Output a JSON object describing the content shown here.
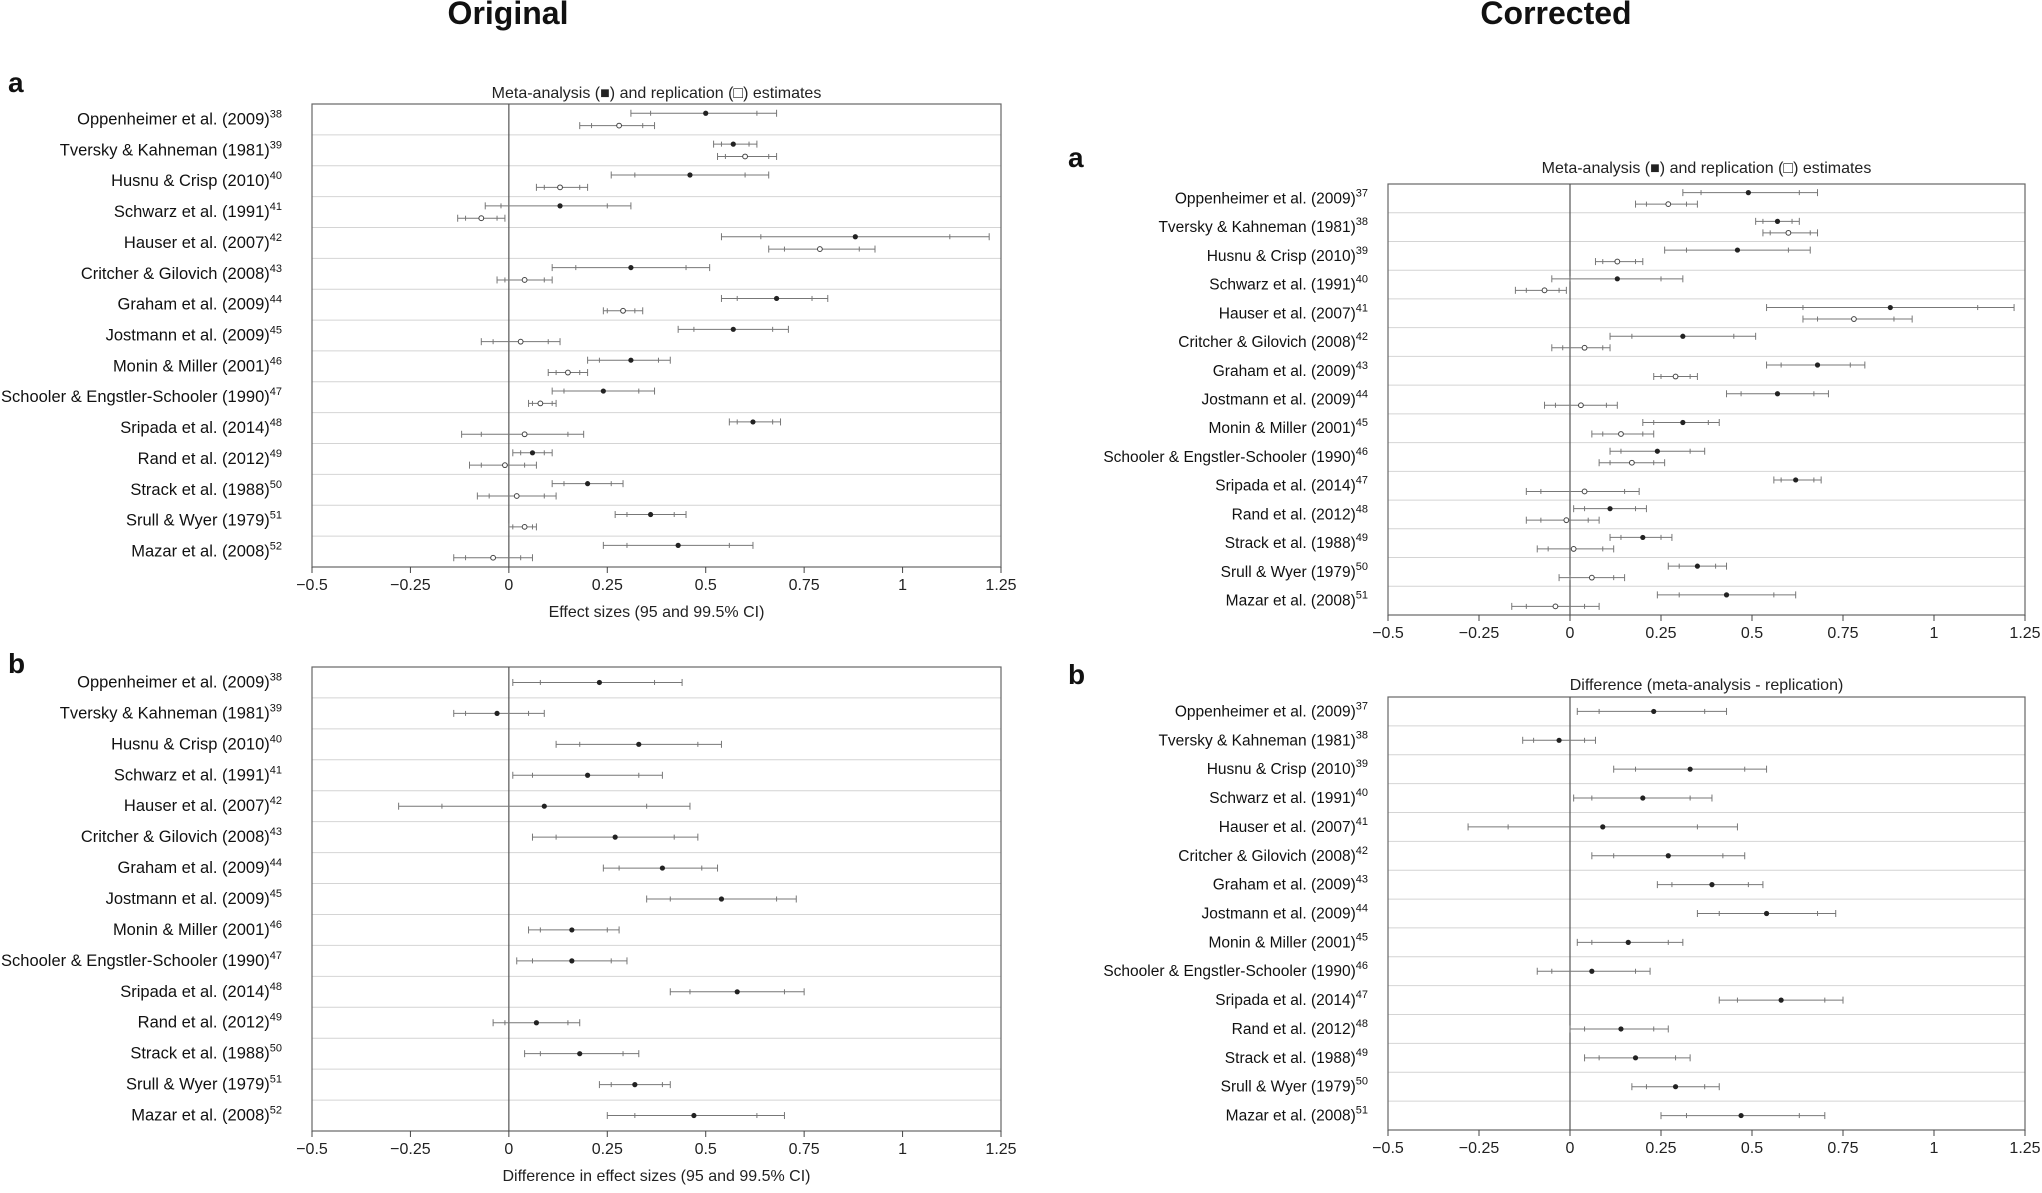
{
  "headers": {
    "left": "Original",
    "right": "Corrected"
  },
  "studies": [
    {
      "name": "Oppenheimer et al. (2009)",
      "ref": "38"
    },
    {
      "name": "Tversky & Kahneman (1981)",
      "ref": "39"
    },
    {
      "name": "Husnu & Crisp (2010)",
      "ref": "40"
    },
    {
      "name": "Schwarz et al. (1991)",
      "ref": "41"
    },
    {
      "name": "Hauser et al. (2007)",
      "ref": "42"
    },
    {
      "name": "Critcher & Gilovich (2008)",
      "ref": "43"
    },
    {
      "name": "Graham et al. (2009)",
      "ref": "44"
    },
    {
      "name": "Jostmann et al. (2009)",
      "ref": "45"
    },
    {
      "name": "Monin & Miller (2001)",
      "ref": "46"
    },
    {
      "name": "Schooler & Engstler-Schooler (1990)",
      "ref": "47"
    },
    {
      "name": "Sripada et al. (2014)",
      "ref": "48"
    },
    {
      "name": "Rand et al. (2012)",
      "ref": "49"
    },
    {
      "name": "Strack et al. (1988)",
      "ref": "50"
    },
    {
      "name": "Srull & Wyer (1979)",
      "ref": "51"
    },
    {
      "name": "Mazar et al. (2008)",
      "ref": "52"
    }
  ],
  "chart_data": [
    {
      "id": "orig-a",
      "panel_letter": "a",
      "type": "forest",
      "title": "Meta-analysis (■) and replication (□) estimates",
      "xlabel": "Effect sizes (95 and 99.5% CI)",
      "xlim": [
        -0.5,
        1.25
      ],
      "ticks": [
        -0.5,
        -0.25,
        0,
        0.25,
        0.5,
        0.75,
        1,
        1.25
      ],
      "tick_labels": [
        "−0.5",
        "−0.25",
        "0",
        "0.25",
        "0.5",
        "0.75",
        "1",
        "1.25"
      ],
      "ref_offset": 0,
      "series": [
        {
          "name": "Meta-analysis",
          "marker": "filled",
          "values": [
            [
              0.5,
              0.36,
              0.63,
              0.31,
              0.68
            ],
            [
              0.57,
              0.54,
              0.61,
              0.52,
              0.63
            ],
            [
              0.46,
              0.32,
              0.6,
              0.26,
              0.66
            ],
            [
              0.13,
              -0.02,
              0.25,
              -0.06,
              0.31
            ],
            [
              0.88,
              0.64,
              1.12,
              0.54,
              1.22
            ],
            [
              0.31,
              0.17,
              0.45,
              0.11,
              0.51
            ],
            [
              0.68,
              0.58,
              0.77,
              0.54,
              0.81
            ],
            [
              0.57,
              0.47,
              0.67,
              0.43,
              0.71
            ],
            [
              0.31,
              0.23,
              0.38,
              0.2,
              0.41
            ],
            [
              0.24,
              0.14,
              0.33,
              0.11,
              0.37
            ],
            [
              0.62,
              0.58,
              0.67,
              0.56,
              0.69
            ],
            [
              0.06,
              0.03,
              0.09,
              0.01,
              0.11
            ],
            [
              0.2,
              0.14,
              0.26,
              0.11,
              0.29
            ],
            [
              0.36,
              0.3,
              0.42,
              0.27,
              0.45
            ],
            [
              0.43,
              0.3,
              0.56,
              0.24,
              0.62
            ]
          ]
        },
        {
          "name": "Replication",
          "marker": "open",
          "values": [
            [
              0.28,
              0.21,
              0.34,
              0.18,
              0.37
            ],
            [
              0.6,
              0.55,
              0.66,
              0.53,
              0.68
            ],
            [
              0.13,
              0.09,
              0.18,
              0.07,
              0.2
            ],
            [
              -0.07,
              -0.11,
              -0.03,
              -0.13,
              -0.01
            ],
            [
              0.79,
              0.7,
              0.89,
              0.66,
              0.93
            ],
            [
              0.04,
              -0.01,
              0.09,
              -0.03,
              0.11
            ],
            [
              0.29,
              0.25,
              0.32,
              0.24,
              0.34
            ],
            [
              0.03,
              -0.04,
              0.1,
              -0.07,
              0.13
            ],
            [
              0.15,
              0.12,
              0.18,
              0.1,
              0.2
            ],
            [
              0.08,
              0.06,
              0.11,
              0.05,
              0.12
            ],
            [
              0.04,
              -0.07,
              0.15,
              -0.12,
              0.19
            ],
            [
              -0.01,
              -0.07,
              0.04,
              -0.1,
              0.07
            ],
            [
              0.02,
              -0.05,
              0.09,
              -0.08,
              0.12
            ],
            [
              0.04,
              0.01,
              0.06,
              0.0,
              0.07
            ],
            [
              -0.04,
              -0.11,
              0.03,
              -0.14,
              0.06
            ]
          ]
        }
      ]
    },
    {
      "id": "orig-b",
      "panel_letter": "b",
      "type": "forest",
      "title": "",
      "xlabel": "Difference in effect sizes (95 and 99.5% CI)",
      "xlim": [
        -0.5,
        1.25
      ],
      "ticks": [
        -0.5,
        -0.25,
        0,
        0.25,
        0.5,
        0.75,
        1,
        1.25
      ],
      "tick_labels": [
        "−0.5",
        "−0.25",
        "0",
        "0.25",
        "0.5",
        "0.75",
        "1",
        "1.25"
      ],
      "ref_offset": 0,
      "series": [
        {
          "name": "Difference",
          "marker": "filled",
          "values": [
            [
              0.23,
              0.08,
              0.37,
              0.01,
              0.44
            ],
            [
              -0.03,
              -0.11,
              0.05,
              -0.14,
              0.09
            ],
            [
              0.33,
              0.18,
              0.48,
              0.12,
              0.54
            ],
            [
              0.2,
              0.06,
              0.33,
              0.01,
              0.39
            ],
            [
              0.09,
              -0.17,
              0.35,
              -0.28,
              0.46
            ],
            [
              0.27,
              0.12,
              0.42,
              0.06,
              0.48
            ],
            [
              0.39,
              0.28,
              0.49,
              0.24,
              0.53
            ],
            [
              0.54,
              0.41,
              0.68,
              0.35,
              0.73
            ],
            [
              0.16,
              0.08,
              0.25,
              0.05,
              0.28
            ],
            [
              0.16,
              0.06,
              0.26,
              0.02,
              0.3
            ],
            [
              0.58,
              0.46,
              0.7,
              0.41,
              0.75
            ],
            [
              0.07,
              -0.01,
              0.15,
              -0.04,
              0.18
            ],
            [
              0.18,
              0.08,
              0.29,
              0.04,
              0.33
            ],
            [
              0.32,
              0.26,
              0.39,
              0.23,
              0.41
            ],
            [
              0.47,
              0.32,
              0.63,
              0.25,
              0.7
            ]
          ]
        }
      ]
    },
    {
      "id": "corr-a",
      "panel_letter": "a",
      "type": "forest",
      "title": "Meta-analysis (■) and replication (□) estimates",
      "xlabel": "",
      "xlim": [
        -0.5,
        1.25
      ],
      "ticks": [
        -0.5,
        -0.25,
        0,
        0.25,
        0.5,
        0.75,
        1,
        1.25
      ],
      "tick_labels": [
        "−0.5",
        "−0.25",
        "0",
        "0.25",
        "0.5",
        "0.75",
        "1",
        "1.25"
      ],
      "ref_offset": -1,
      "series": [
        {
          "name": "Meta-analysis",
          "marker": "filled",
          "values": [
            [
              0.49,
              0.36,
              0.63,
              0.31,
              0.68
            ],
            [
              0.57,
              0.53,
              0.61,
              0.51,
              0.63
            ],
            [
              0.46,
              0.32,
              0.6,
              0.26,
              0.66
            ],
            [
              0.13,
              0.0,
              0.25,
              -0.05,
              0.31
            ],
            [
              0.88,
              0.64,
              1.12,
              0.54,
              1.22
            ],
            [
              0.31,
              0.17,
              0.45,
              0.11,
              0.51
            ],
            [
              0.68,
              0.58,
              0.77,
              0.54,
              0.81
            ],
            [
              0.57,
              0.47,
              0.67,
              0.43,
              0.71
            ],
            [
              0.31,
              0.23,
              0.38,
              0.2,
              0.41
            ],
            [
              0.24,
              0.14,
              0.33,
              0.11,
              0.37
            ],
            [
              0.62,
              0.58,
              0.67,
              0.56,
              0.69
            ],
            [
              0.11,
              0.04,
              0.18,
              0.01,
              0.21
            ],
            [
              0.2,
              0.14,
              0.25,
              0.11,
              0.28
            ],
            [
              0.35,
              0.3,
              0.4,
              0.27,
              0.43
            ],
            [
              0.43,
              0.3,
              0.56,
              0.24,
              0.62
            ]
          ]
        },
        {
          "name": "Replication",
          "marker": "open",
          "values": [
            [
              0.27,
              0.21,
              0.32,
              0.18,
              0.35
            ],
            [
              0.6,
              0.55,
              0.66,
              0.53,
              0.68
            ],
            [
              0.13,
              0.09,
              0.18,
              0.07,
              0.2
            ],
            [
              -0.07,
              -0.12,
              -0.03,
              -0.15,
              -0.01
            ],
            [
              0.78,
              0.68,
              0.89,
              0.64,
              0.94
            ],
            [
              0.04,
              -0.02,
              0.09,
              -0.05,
              0.11
            ],
            [
              0.29,
              0.25,
              0.33,
              0.23,
              0.35
            ],
            [
              0.03,
              -0.04,
              0.1,
              -0.07,
              0.13
            ],
            [
              0.14,
              0.09,
              0.2,
              0.06,
              0.23
            ],
            [
              0.17,
              0.11,
              0.23,
              0.08,
              0.26
            ],
            [
              0.04,
              -0.08,
              0.15,
              -0.12,
              0.19
            ],
            [
              -0.01,
              -0.08,
              0.05,
              -0.12,
              0.08
            ],
            [
              0.01,
              -0.06,
              0.09,
              -0.09,
              0.12
            ],
            [
              0.06,
              0.0,
              0.12,
              -0.03,
              0.15
            ],
            [
              -0.04,
              -0.12,
              0.04,
              -0.16,
              0.08
            ]
          ]
        }
      ]
    },
    {
      "id": "corr-b",
      "panel_letter": "b",
      "type": "forest",
      "title": "Difference (meta-analysis - replication)",
      "xlabel": "",
      "xlim": [
        -0.5,
        1.25
      ],
      "ticks": [
        -0.5,
        -0.25,
        0,
        0.25,
        0.5,
        0.75,
        1,
        1.25
      ],
      "tick_labels": [
        "−0.5",
        "−0.25",
        "0",
        "0.25",
        "0.5",
        "0.75",
        "1",
        "1.25"
      ],
      "ref_offset": -1,
      "series": [
        {
          "name": "Difference",
          "marker": "filled",
          "values": [
            [
              0.23,
              0.08,
              0.37,
              0.02,
              0.43
            ],
            [
              -0.03,
              -0.1,
              0.04,
              -0.13,
              0.07
            ],
            [
              0.33,
              0.18,
              0.48,
              0.12,
              0.54
            ],
            [
              0.2,
              0.06,
              0.33,
              0.01,
              0.39
            ],
            [
              0.09,
              -0.17,
              0.35,
              -0.28,
              0.46
            ],
            [
              0.27,
              0.12,
              0.42,
              0.06,
              0.48
            ],
            [
              0.39,
              0.28,
              0.49,
              0.24,
              0.53
            ],
            [
              0.54,
              0.41,
              0.68,
              0.35,
              0.73
            ],
            [
              0.16,
              0.06,
              0.27,
              0.02,
              0.31
            ],
            [
              0.06,
              -0.05,
              0.18,
              -0.09,
              0.22
            ],
            [
              0.58,
              0.46,
              0.7,
              0.41,
              0.75
            ],
            [
              0.14,
              0.04,
              0.23,
              0.0,
              0.27
            ],
            [
              0.18,
              0.08,
              0.29,
              0.04,
              0.33
            ],
            [
              0.29,
              0.21,
              0.37,
              0.17,
              0.41
            ],
            [
              0.47,
              0.32,
              0.63,
              0.25,
              0.7
            ]
          ]
        }
      ]
    }
  ]
}
